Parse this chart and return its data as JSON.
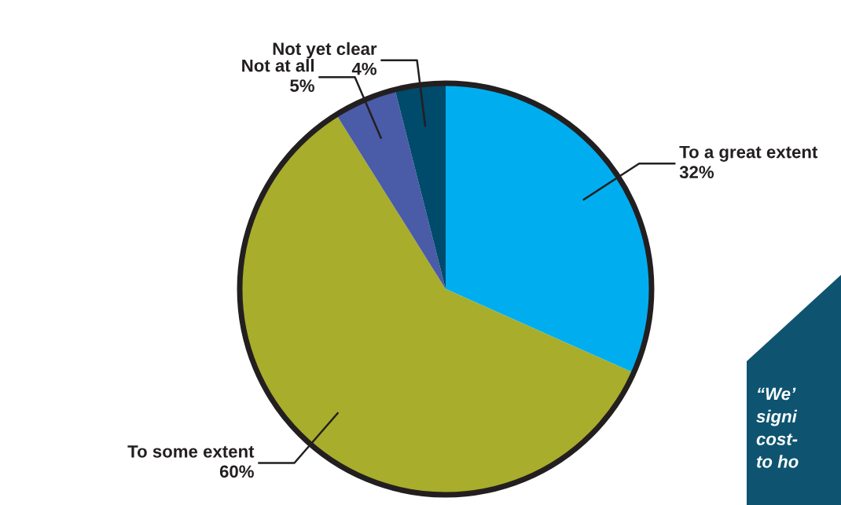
{
  "chart_data": {
    "type": "pie",
    "categories": [
      "To a great extent",
      "To some extent",
      "Not at all",
      "Not yet clear"
    ],
    "values": [
      32,
      60,
      5,
      4
    ],
    "colors": [
      "#00aeef",
      "#a8ad2b",
      "#4a5ba8",
      "#004a6b"
    ],
    "value_labels": [
      "32%",
      "60%",
      "5%",
      "4%"
    ],
    "annotations": [
      "“We’\nsigni\ncost-\nto ho"
    ]
  }
}
